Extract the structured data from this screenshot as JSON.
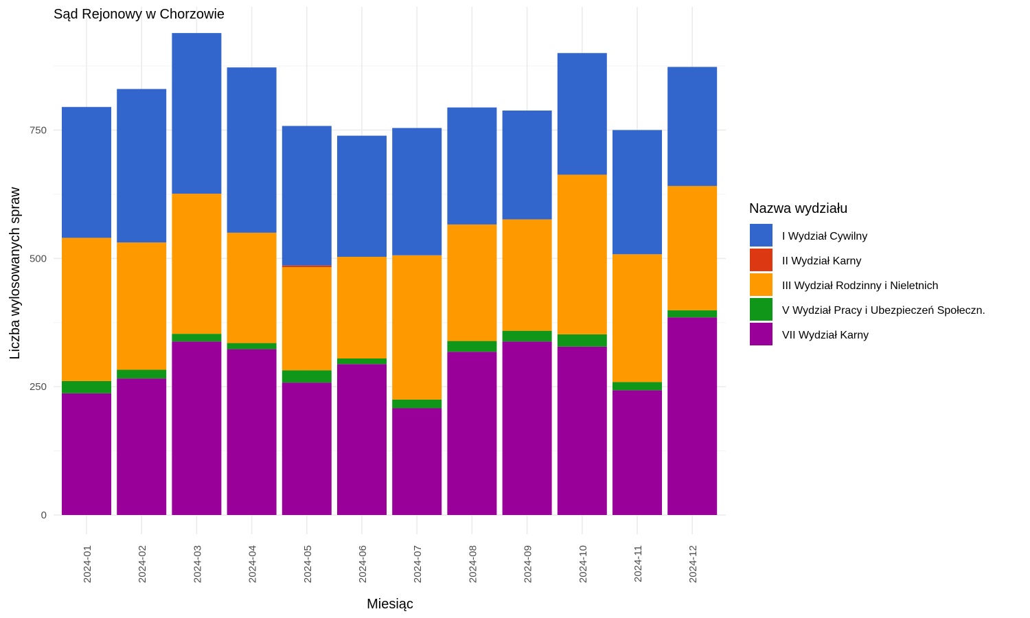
{
  "chart_data": {
    "type": "bar",
    "stacked": true,
    "title": "Sąd Rejonowy w Chorzowie",
    "xlabel": "Miesiąc",
    "ylabel": "Liczba wylosowanych spraw",
    "ylim": [
      0,
      990
    ],
    "yticks": [
      0,
      250,
      500,
      750
    ],
    "grid": true,
    "legend_position": "right",
    "legend_title": "Nazwa wydziału",
    "categories": [
      "2024-01",
      "2024-02",
      "2024-03",
      "2024-04",
      "2024-05",
      "2024-06",
      "2024-07",
      "2024-08",
      "2024-09",
      "2024-10",
      "2024-11",
      "2024-12"
    ],
    "series": [
      {
        "name": "VII Wydział Karny",
        "color": "#990099",
        "values": [
          237,
          266,
          338,
          323,
          258,
          294,
          208,
          318,
          338,
          328,
          243,
          385
        ]
      },
      {
        "name": "V Wydział Pracy i Ubezpieczeń Społeczn.",
        "color": "#109618",
        "values": [
          24,
          17,
          15,
          12,
          24,
          11,
          17,
          21,
          21,
          24,
          16,
          14
        ]
      },
      {
        "name": "III Wydział Rodzinny i Nieletnich",
        "color": "#ff9900",
        "values": [
          279,
          248,
          273,
          215,
          201,
          198,
          281,
          227,
          217,
          311,
          249,
          242
        ]
      },
      {
        "name": "II Wydział Karny",
        "color": "#dc3912",
        "values": [
          0,
          0,
          0,
          0,
          3,
          0,
          0,
          0,
          0,
          0,
          0,
          0
        ]
      },
      {
        "name": "I Wydział Cywilny",
        "color": "#3366cc",
        "values": [
          255,
          299,
          313,
          322,
          272,
          236,
          248,
          228,
          212,
          237,
          242,
          232
        ]
      }
    ],
    "legend_order": [
      "I Wydział Cywilny",
      "II Wydział Karny",
      "III Wydział Rodzinny i Nieletnich",
      "V Wydział Pracy i Ubezpieczeń Społeczn.",
      "VII Wydział Karny"
    ]
  }
}
